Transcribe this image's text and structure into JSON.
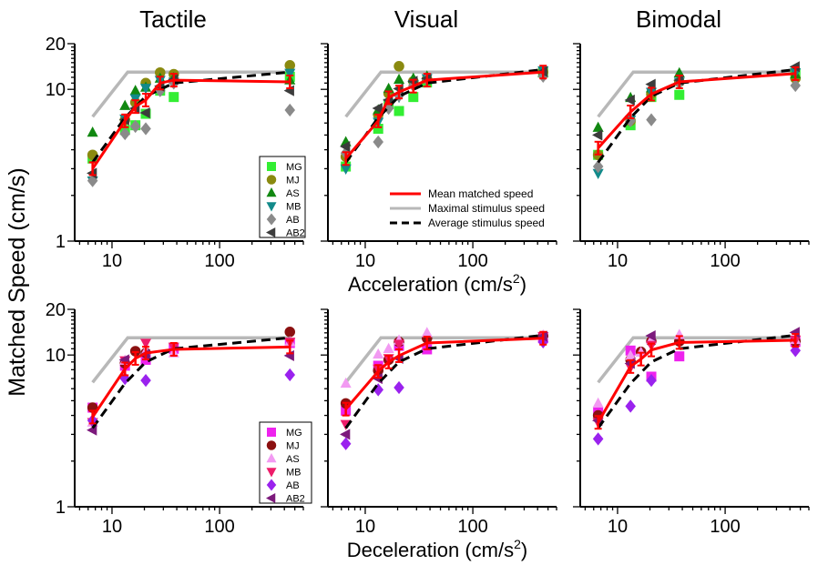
{
  "figure": {
    "column_titles": [
      "Tactile",
      "Visual",
      "Bimodal"
    ],
    "ylabel": "Matched Speed (cm/s)",
    "xlabel_top_main": "Acceleration (cm/s",
    "xlabel_top_sup": "2",
    "xlabel_top_end": ")",
    "xlabel_bottom_main": "Deceleration (cm/s",
    "xlabel_bottom_sup": "2",
    "xlabel_bottom_end": ")"
  },
  "colors": {
    "mean": "#ff0000",
    "maximal": "#b8b8b8",
    "average": "#000000",
    "top_subjects": {
      "MG": "#33ee33",
      "MJ": "#8a8a10",
      "AS": "#118811",
      "MB": "#128a8a",
      "AB": "#8a8a8a",
      "AB2": "#3c3c3c"
    },
    "bottom_subjects": {
      "MG": "#ee22ee",
      "MJ": "#8b1010",
      "AS": "#f29af2",
      "MB": "#ee1c6a",
      "AB": "#9a22ee",
      "AB2": "#7c1a7c"
    }
  },
  "legend_subjects": {
    "top": [
      {
        "label": "MG",
        "marker": "square",
        "key": "MG"
      },
      {
        "label": "MJ",
        "marker": "circle",
        "key": "MJ"
      },
      {
        "label": "AS",
        "marker": "triangle-up",
        "key": "AS"
      },
      {
        "label": "MB",
        "marker": "triangle-down",
        "key": "MB"
      },
      {
        "label": "AB",
        "marker": "diamond",
        "key": "AB"
      },
      {
        "label": "AB2",
        "marker": "triangle-left",
        "key": "AB2"
      }
    ],
    "bottom": [
      {
        "label": "MG",
        "marker": "square",
        "key": "MG"
      },
      {
        "label": "MJ",
        "marker": "circle",
        "key": "MJ"
      },
      {
        "label": "AS",
        "marker": "triangle-up",
        "key": "AS"
      },
      {
        "label": "MB",
        "marker": "triangle-down",
        "key": "MB"
      },
      {
        "label": "AB",
        "marker": "diamond",
        "key": "AB"
      },
      {
        "label": "AB2",
        "marker": "triangle-left",
        "key": "AB2"
      }
    ]
  },
  "legend_lines": [
    {
      "label": "Mean matched speed",
      "style": "mean"
    },
    {
      "label": "Maximal stimulus speed",
      "style": "maximal"
    },
    {
      "label": "Average stimulus speed",
      "style": "average"
    }
  ],
  "chart_data": [
    {
      "type": "scatter",
      "panel": "top-left",
      "title": "Tactile",
      "row": 0,
      "col": 0,
      "xscale": "log",
      "yscale": "log",
      "xlim": [
        4.5,
        600
      ],
      "ylim": [
        1,
        20
      ],
      "xticks": [
        10,
        100
      ],
      "yticks": [
        1,
        10,
        20
      ],
      "subjects": {
        "MG": {
          "x": [
            6.6,
            13.2,
            16.5,
            20.6,
            28,
            37.5,
            450
          ],
          "y": [
            3.5,
            5.4,
            5.8,
            6.9,
            9.8,
            8.9,
            12.1
          ]
        },
        "MJ": {
          "x": [
            6.6,
            13.2,
            16.5,
            20.6,
            28,
            37.5,
            450
          ],
          "y": [
            3.7,
            6.3,
            8.2,
            11,
            12.9,
            12.6,
            14.4
          ]
        },
        "AS": {
          "x": [
            6.6,
            13.2,
            16.5,
            20.6,
            28,
            37.5,
            450
          ],
          "y": [
            5.2,
            7.8,
            9.8,
            10.3,
            11.8,
            11.9,
            11.5
          ]
        },
        "MB": {
          "x": [
            6.6,
            13.2,
            16.5,
            20.6,
            28,
            37.5,
            450
          ],
          "y": [
            2.5,
            6.4,
            8.7,
            10.2,
            11.5,
            11.2,
            12.8
          ]
        },
        "AB": {
          "x": [
            6.6,
            13.2,
            16.5,
            20.6,
            28,
            37.5,
            450
          ],
          "y": [
            2.5,
            5.1,
            5.7,
            5.5,
            9.8,
            11.0,
            7.3
          ]
        },
        "AB2": {
          "x": [
            6.6,
            13.2,
            16.5,
            20.6,
            28,
            37.5,
            450
          ],
          "y": [
            2.8,
            6.3,
            7.5,
            7.0,
            10.5,
            11.6,
            9.8
          ]
        }
      },
      "mean": {
        "x": [
          6.6,
          13.2,
          16.5,
          20.6,
          28,
          37.5,
          450
        ],
        "y": [
          3.0,
          6.2,
          7.7,
          8.5,
          11.0,
          11.5,
          11.2
        ]
      },
      "maximal": {
        "x": [
          6.6,
          14,
          450
        ],
        "y": [
          6.6,
          13,
          13
        ]
      },
      "average": {
        "x": [
          6.6,
          13.2,
          20.6,
          37.5,
          450
        ],
        "y": [
          3.3,
          6.5,
          9.0,
          11.0,
          13.0
        ]
      }
    },
    {
      "type": "scatter",
      "panel": "top-middle",
      "title": "Visual",
      "row": 0,
      "col": 1,
      "xscale": "log",
      "yscale": "log",
      "xlim": [
        4.5,
        600
      ],
      "ylim": [
        1,
        20
      ],
      "xticks": [
        10,
        100
      ],
      "yticks": [
        1,
        10,
        20
      ],
      "subjects": {
        "MG": {
          "x": [
            6.6,
            13.2,
            16.5,
            20.6,
            28,
            37.5,
            450
          ],
          "y": [
            3.1,
            5.5,
            8.0,
            7.2,
            8.9,
            11.1,
            12.9
          ]
        },
        "MJ": {
          "x": [
            6.6,
            13.2,
            16.5,
            20.6,
            28,
            37.5,
            450
          ],
          "y": [
            3.6,
            6.8,
            9.4,
            14.2,
            11.3,
            11.7,
            13.0
          ]
        },
        "AS": {
          "x": [
            6.6,
            13.2,
            16.5,
            20.6,
            28,
            37.5,
            450
          ],
          "y": [
            4.5,
            7.3,
            10.1,
            11.6,
            11.8,
            12.2,
            12.9
          ]
        },
        "MB": {
          "x": [
            6.6,
            13.2,
            16.5,
            20.6,
            28,
            37.5,
            450
          ],
          "y": [
            3.0,
            6.1,
            8.1,
            8.9,
            10.8,
            11.8,
            13.3
          ]
        },
        "AB": {
          "x": [
            6.6,
            13.2,
            16.5,
            20.6,
            28,
            37.5,
            450
          ],
          "y": [
            3.8,
            4.5,
            7.5,
            9.1,
            10.6,
            11.6,
            12.2
          ]
        },
        "AB2": {
          "x": [
            6.6,
            13.2,
            16.5,
            20.6,
            28,
            37.5,
            450
          ],
          "y": [
            4.2,
            7.5,
            8.5,
            10.1,
            11.3,
            11.8,
            13.1
          ]
        }
      },
      "mean": {
        "x": [
          6.6,
          13.2,
          16.5,
          20.6,
          28,
          37.5,
          450
        ],
        "y": [
          3.5,
          6.2,
          8.8,
          9.6,
          10.5,
          11.5,
          13.0
        ]
      },
      "maximal": {
        "x": [
          6.6,
          14,
          450
        ],
        "y": [
          6.6,
          13,
          13
        ]
      },
      "average": {
        "x": [
          6.6,
          13.2,
          20.6,
          37.5,
          450
        ],
        "y": [
          3.3,
          6.5,
          9.0,
          11.0,
          13.5
        ]
      }
    },
    {
      "type": "scatter",
      "panel": "top-right",
      "title": "Bimodal",
      "row": 0,
      "col": 2,
      "xscale": "log",
      "yscale": "log",
      "xlim": [
        4.5,
        600
      ],
      "ylim": [
        1,
        20
      ],
      "xticks": [
        10,
        100
      ],
      "yticks": [
        1,
        10,
        20
      ],
      "subjects": {
        "MG": {
          "x": [
            6.6,
            13.2,
            20.6,
            37.5,
            450
          ],
          "y": [
            3.7,
            5.8,
            8.9,
            9.2,
            12.8
          ]
        },
        "MJ": {
          "x": [
            6.6,
            13.2,
            20.6,
            37.5,
            450
          ],
          "y": [
            3.7,
            6.2,
            9.3,
            11.2,
            11.8
          ]
        },
        "AS": {
          "x": [
            6.6,
            13.2,
            20.6,
            37.5,
            450
          ],
          "y": [
            5.6,
            8.8,
            10.2,
            12.8,
            12.6
          ]
        },
        "MB": {
          "x": [
            6.6,
            13.2,
            20.6,
            37.5,
            450
          ],
          "y": [
            2.8,
            6.3,
            9.6,
            11.2,
            12.9
          ]
        },
        "AB": {
          "x": [
            6.6,
            13.2,
            20.6,
            37.5,
            450
          ],
          "y": [
            3.1,
            6.2,
            6.3,
            11.0,
            10.6
          ]
        },
        "AB2": {
          "x": [
            6.6,
            13.2,
            20.6,
            37.5,
            450
          ],
          "y": [
            5.0,
            8.5,
            10.8,
            11.5,
            14.1
          ]
        }
      },
      "mean": {
        "x": [
          6.6,
          13.2,
          20.6,
          37.5,
          450
        ],
        "y": [
          4.1,
          7.1,
          9.3,
          11.2,
          12.7
        ]
      },
      "maximal": {
        "x": [
          6.6,
          14,
          450
        ],
        "y": [
          6.6,
          13,
          13
        ]
      },
      "average": {
        "x": [
          6.6,
          13.2,
          20.6,
          37.5,
          450
        ],
        "y": [
          3.3,
          6.5,
          9.0,
          11.0,
          13.5
        ]
      }
    },
    {
      "type": "scatter",
      "panel": "bottom-left",
      "row": 1,
      "col": 0,
      "xscale": "log",
      "yscale": "log",
      "xlim": [
        4.5,
        600
      ],
      "ylim": [
        1,
        20
      ],
      "xticks": [
        10,
        100
      ],
      "yticks": [
        1,
        10,
        20
      ],
      "subjects": {
        "MG": {
          "x": [
            6.6,
            13.2,
            20.6,
            37.5,
            450
          ],
          "y": [
            4.5,
            8.5,
            9.3,
            11.0,
            12.0
          ]
        },
        "MJ": {
          "x": [
            6.6,
            13.2,
            16.5,
            20.6,
            450
          ],
          "y": [
            4.5,
            8.8,
            10.6,
            10.3,
            14.2
          ]
        },
        "AS": {
          "x": [
            6.6,
            13.2,
            20.6,
            37.5,
            450
          ],
          "y": [
            3.6,
            9.2,
            10.6,
            10.3,
            12.2
          ]
        },
        "MB": {
          "x": [
            6.6,
            13.2,
            20.6,
            37.5,
            450
          ],
          "y": [
            3.6,
            9.2,
            12.0,
            11.3,
            12.2
          ]
        },
        "AB": {
          "x": [
            6.6,
            13.2,
            20.6,
            450
          ],
          "y": [
            3.7,
            7.0,
            6.8,
            7.4
          ]
        },
        "AB2": {
          "x": [
            6.6,
            13.2,
            20.6,
            450
          ],
          "y": [
            3.2,
            9.3,
            10.1,
            9.9
          ]
        }
      },
      "mean": {
        "x": [
          6.6,
          13.2,
          16.5,
          20.6,
          37.5,
          450
        ],
        "y": [
          3.9,
          8.1,
          9.5,
          10.3,
          10.9,
          11.3
        ]
      },
      "maximal": {
        "x": [
          6.6,
          14,
          450
        ],
        "y": [
          6.6,
          13,
          13
        ]
      },
      "average": {
        "x": [
          6.6,
          13.2,
          20.6,
          37.5,
          450
        ],
        "y": [
          3.3,
          6.5,
          9.0,
          11.0,
          13.0
        ]
      }
    },
    {
      "type": "scatter",
      "panel": "bottom-middle",
      "row": 1,
      "col": 1,
      "xscale": "log",
      "yscale": "log",
      "xlim": [
        4.5,
        600
      ],
      "ylim": [
        1,
        20
      ],
      "xticks": [
        10,
        100
      ],
      "yticks": [
        1,
        10,
        20
      ],
      "subjects": {
        "MG": {
          "x": [
            6.6,
            13.2,
            20.6,
            37.5,
            450
          ],
          "y": [
            4.3,
            8.5,
            11.5,
            10.9,
            12.9
          ]
        },
        "MJ": {
          "x": [
            6.6,
            13.2,
            16.5,
            20.6,
            37.5,
            450
          ],
          "y": [
            4.8,
            7.9,
            9.3,
            12.2,
            12.9,
            13.3
          ]
        },
        "AS": {
          "x": [
            6.6,
            13.2,
            16.5,
            20.6,
            37.5,
            450
          ],
          "y": [
            6.5,
            10.1,
            11.0,
            12.5,
            14.0,
            13.5
          ]
        },
        "MB": {
          "x": [
            6.6,
            13.2,
            16.5,
            20.6,
            450
          ],
          "y": [
            3.5,
            8.1,
            9.5,
            11.8,
            13.3
          ]
        },
        "AB": {
          "x": [
            6.6,
            13.2,
            20.6,
            450
          ],
          "y": [
            2.6,
            5.9,
            6.1,
            12.2
          ]
        },
        "AB2": {
          "x": [
            6.6,
            13.2,
            20.6,
            450
          ],
          "y": [
            3.0,
            7.0,
            9.5,
            13.3
          ]
        }
      },
      "mean": {
        "x": [
          6.6,
          13.2,
          16.5,
          20.6,
          37.5,
          450
        ],
        "y": [
          4.4,
          7.8,
          9.0,
          9.9,
          12.0,
          12.9
        ]
      },
      "maximal": {
        "x": [
          6.6,
          14,
          450
        ],
        "y": [
          6.6,
          13,
          13
        ]
      },
      "average": {
        "x": [
          6.6,
          13.2,
          20.6,
          37.5,
          450
        ],
        "y": [
          3.3,
          6.5,
          9.0,
          11.0,
          13.5
        ]
      }
    },
    {
      "type": "scatter",
      "panel": "bottom-right",
      "row": 1,
      "col": 2,
      "xscale": "log",
      "yscale": "log",
      "xlim": [
        4.5,
        600
      ],
      "ylim": [
        1,
        20
      ],
      "xticks": [
        10,
        100
      ],
      "yticks": [
        1,
        10,
        20
      ],
      "subjects": {
        "MG": {
          "x": [
            6.6,
            13.2,
            20.6,
            37.5,
            450
          ],
          "y": [
            4.2,
            10.7,
            7.2,
            9.8,
            12.2
          ]
        },
        "MJ": {
          "x": [
            6.6,
            13.2,
            16.5,
            20.6,
            37.5,
            450
          ],
          "y": [
            4.0,
            9.3,
            10.5,
            12.3,
            12.3,
            12.3
          ]
        },
        "AS": {
          "x": [
            6.6,
            13.2,
            16.5,
            20.6,
            37.5,
            450
          ],
          "y": [
            4.8,
            9.9,
            10.4,
            12.6,
            13.6,
            12.6
          ]
        },
        "MB": {
          "x": [
            6.6,
            13.2,
            20.6,
            450
          ],
          "y": [
            3.6,
            8.3,
            11.6,
            12.6
          ]
        },
        "AB": {
          "x": [
            6.6,
            13.2,
            20.6,
            450
          ],
          "y": [
            2.8,
            4.6,
            6.8,
            10.7
          ]
        },
        "AB2": {
          "x": [
            6.6,
            13.2,
            20.6,
            450
          ],
          "y": [
            3.7,
            8.8,
            13.4,
            14.1
          ]
        }
      },
      "mean": {
        "x": [
          6.6,
          13.2,
          16.5,
          20.6,
          37.5,
          450
        ],
        "y": [
          3.6,
          8.4,
          9.4,
          10.8,
          12.1,
          12.5
        ]
      },
      "maximal": {
        "x": [
          6.6,
          14,
          450
        ],
        "y": [
          6.6,
          13,
          13
        ]
      },
      "average": {
        "x": [
          6.6,
          13.2,
          20.6,
          37.5,
          450
        ],
        "y": [
          3.3,
          6.5,
          9.0,
          11.0,
          13.5
        ]
      }
    }
  ]
}
